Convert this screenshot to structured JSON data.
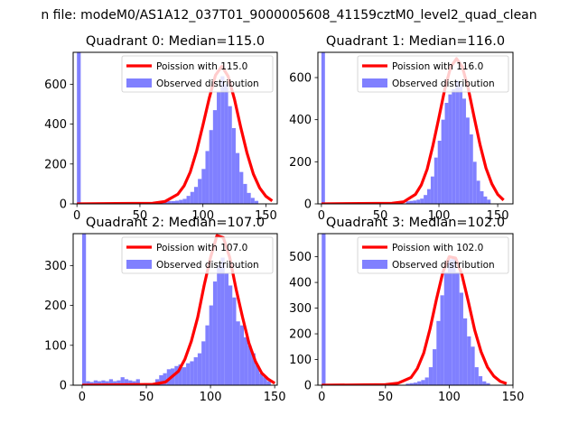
{
  "figure": {
    "suptitle": "n file: modeM0/AS1A12_037T01_9000005608_41159cztM0_level2_quad_clean"
  },
  "colors": {
    "poisson_line": "#ff0000",
    "histogram_fill": "#8080ff",
    "axes": "#000000",
    "background": "#ffffff"
  },
  "chart_data": [
    {
      "type": "bar",
      "title": "Quadrant 0: Median=115.0",
      "xlabel": "",
      "ylabel": "",
      "xlim": [
        -3,
        159
      ],
      "ylim": [
        0,
        760
      ],
      "xticks": [
        0,
        50,
        100,
        150
      ],
      "yticks": [
        0,
        200,
        400,
        600
      ],
      "legend_position": "upper right",
      "legend": [
        {
          "label": "Poission with 115.0",
          "kind": "line"
        },
        {
          "label": "Observed distribution",
          "kind": "patch"
        }
      ],
      "histogram": {
        "bin_width": 3,
        "bins": [
          [
            0,
            760
          ],
          [
            63,
            8
          ],
          [
            66,
            10
          ],
          [
            69,
            12
          ],
          [
            72,
            14
          ],
          [
            75,
            14
          ],
          [
            78,
            16
          ],
          [
            81,
            20
          ],
          [
            84,
            25
          ],
          [
            87,
            40
          ],
          [
            90,
            60
          ],
          [
            93,
            85
          ],
          [
            96,
            125
          ],
          [
            99,
            175
          ],
          [
            102,
            265
          ],
          [
            105,
            370
          ],
          [
            108,
            470
          ],
          [
            111,
            560
          ],
          [
            114,
            640
          ],
          [
            117,
            600
          ],
          [
            120,
            490
          ],
          [
            123,
            380
          ],
          [
            126,
            255
          ],
          [
            129,
            160
          ],
          [
            132,
            100
          ],
          [
            135,
            55
          ],
          [
            138,
            30
          ],
          [
            141,
            15
          ]
        ]
      },
      "poisson_line": {
        "x": [
          0,
          60,
          70,
          80,
          85,
          90,
          95,
          100,
          105,
          110,
          115,
          120,
          125,
          130,
          135,
          140,
          145,
          150,
          155
        ],
        "y": [
          0,
          3,
          12,
          48,
          90,
          160,
          265,
          395,
          530,
          645,
          690,
          640,
          525,
          385,
          255,
          150,
          80,
          38,
          15
        ]
      }
    },
    {
      "type": "bar",
      "title": "Quadrant 1: Median=116.0",
      "xlabel": "",
      "ylabel": "",
      "xlim": [
        -3,
        163
      ],
      "ylim": [
        0,
        720
      ],
      "xticks": [
        0,
        50,
        100,
        150
      ],
      "yticks": [
        0,
        200,
        400,
        600
      ],
      "legend_position": "upper right",
      "legend": [
        {
          "label": "Poission with 116.0",
          "kind": "line"
        },
        {
          "label": "Observed distribution",
          "kind": "patch"
        }
      ],
      "histogram": {
        "bin_width": 3,
        "bins": [
          [
            0,
            720
          ],
          [
            72,
            12
          ],
          [
            75,
            14
          ],
          [
            78,
            16
          ],
          [
            81,
            20
          ],
          [
            84,
            25
          ],
          [
            87,
            42
          ],
          [
            90,
            70
          ],
          [
            93,
            130
          ],
          [
            96,
            220
          ],
          [
            99,
            300
          ],
          [
            102,
            400
          ],
          [
            105,
            480
          ],
          [
            108,
            520
          ],
          [
            111,
            545
          ],
          [
            114,
            585
          ],
          [
            117,
            570
          ],
          [
            120,
            500
          ],
          [
            123,
            410
          ],
          [
            126,
            330
          ],
          [
            129,
            200
          ],
          [
            132,
            110
          ],
          [
            135,
            60
          ],
          [
            138,
            35
          ],
          [
            141,
            20
          ]
        ]
      },
      "poisson_line": {
        "x": [
          0,
          60,
          70,
          80,
          85,
          90,
          95,
          100,
          105,
          110,
          115,
          120,
          125,
          130,
          135,
          140,
          145,
          150,
          155
        ],
        "y": [
          0,
          3,
          10,
          45,
          90,
          165,
          280,
          410,
          545,
          650,
          690,
          650,
          545,
          410,
          280,
          170,
          95,
          45,
          18
        ]
      }
    },
    {
      "type": "bar",
      "title": "Quadrant 2: Median=107.0",
      "xlabel": "",
      "ylabel": "",
      "xlim": [
        -7,
        152
      ],
      "ylim": [
        0,
        380
      ],
      "xticks": [
        0,
        50,
        100,
        150
      ],
      "yticks": [
        0,
        100,
        200,
        300
      ],
      "legend_position": "upper right",
      "legend": [
        {
          "label": "Poission with 107.0",
          "kind": "line"
        },
        {
          "label": "Observed distribution",
          "kind": "patch"
        }
      ],
      "histogram": {
        "bin_width": 3,
        "bins": [
          [
            0,
            380
          ],
          [
            3,
            10
          ],
          [
            6,
            8
          ],
          [
            9,
            12
          ],
          [
            12,
            10
          ],
          [
            15,
            12
          ],
          [
            18,
            10
          ],
          [
            21,
            15
          ],
          [
            24,
            10
          ],
          [
            27,
            12
          ],
          [
            30,
            20
          ],
          [
            33,
            15
          ],
          [
            36,
            12
          ],
          [
            39,
            10
          ],
          [
            42,
            15
          ],
          [
            48,
            5
          ],
          [
            51,
            5
          ],
          [
            54,
            5
          ],
          [
            57,
            15
          ],
          [
            60,
            25
          ],
          [
            63,
            30
          ],
          [
            66,
            40
          ],
          [
            69,
            42
          ],
          [
            72,
            48
          ],
          [
            75,
            52
          ],
          [
            78,
            45
          ],
          [
            81,
            55
          ],
          [
            84,
            60
          ],
          [
            87,
            70
          ],
          [
            90,
            80
          ],
          [
            93,
            110
          ],
          [
            96,
            150
          ],
          [
            99,
            200
          ],
          [
            102,
            260
          ],
          [
            105,
            300
          ],
          [
            108,
            320
          ],
          [
            111,
            280
          ],
          [
            114,
            250
          ],
          [
            117,
            220
          ],
          [
            120,
            160
          ],
          [
            123,
            150
          ],
          [
            126,
            120
          ],
          [
            129,
            100
          ],
          [
            132,
            80
          ],
          [
            135,
            50
          ],
          [
            138,
            30
          ],
          [
            141,
            20
          ],
          [
            144,
            10
          ]
        ]
      },
      "poisson_line": {
        "x": [
          0,
          55,
          65,
          75,
          80,
          85,
          90,
          95,
          100,
          105,
          110,
          115,
          120,
          125,
          130,
          135,
          140,
          145,
          150
        ],
        "y": [
          0,
          2,
          8,
          35,
          65,
          110,
          170,
          250,
          320,
          375,
          370,
          320,
          240,
          170,
          105,
          60,
          30,
          15,
          5
        ]
      }
    },
    {
      "type": "bar",
      "title": "Quadrant 3: Median=102.0",
      "xlabel": "",
      "ylabel": "",
      "xlim": [
        -3,
        150
      ],
      "ylim": [
        0,
        590
      ],
      "xticks": [
        0,
        50,
        100,
        150
      ],
      "yticks": [
        0,
        100,
        200,
        300,
        400,
        500
      ],
      "legend_position": "upper right",
      "legend": [
        {
          "label": "Poission with 102.0",
          "kind": "line"
        },
        {
          "label": "Observed distribution",
          "kind": "patch"
        }
      ],
      "histogram": {
        "bin_width": 3,
        "bins": [
          [
            0,
            590
          ],
          [
            66,
            6
          ],
          [
            69,
            8
          ],
          [
            72,
            10
          ],
          [
            75,
            15
          ],
          [
            78,
            20
          ],
          [
            81,
            30
          ],
          [
            84,
            70
          ],
          [
            87,
            140
          ],
          [
            90,
            250
          ],
          [
            93,
            350
          ],
          [
            96,
            440
          ],
          [
            99,
            490
          ],
          [
            102,
            500
          ],
          [
            105,
            440
          ],
          [
            108,
            360
          ],
          [
            111,
            260
          ],
          [
            114,
            190
          ],
          [
            117,
            150
          ],
          [
            120,
            70
          ],
          [
            123,
            35
          ],
          [
            126,
            15
          ],
          [
            129,
            8
          ]
        ]
      },
      "poisson_line": {
        "x": [
          0,
          50,
          60,
          70,
          75,
          80,
          85,
          90,
          95,
          100,
          105,
          110,
          115,
          120,
          125,
          130,
          135,
          140,
          145
        ],
        "y": [
          0,
          2,
          8,
          30,
          65,
          125,
          220,
          335,
          440,
          500,
          495,
          430,
          325,
          215,
          130,
          70,
          35,
          15,
          6
        ]
      }
    }
  ]
}
